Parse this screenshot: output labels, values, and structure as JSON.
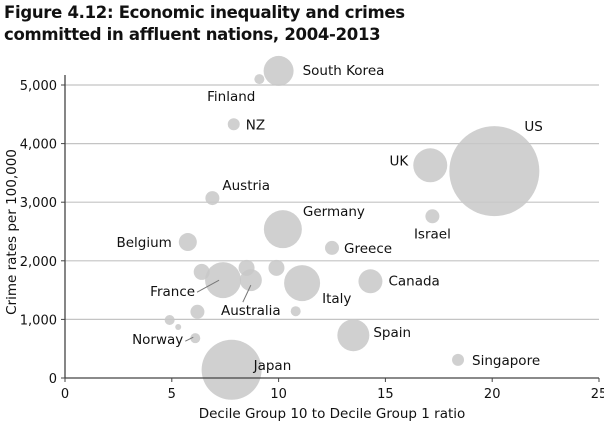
{
  "chart_data": {
    "type": "scatter",
    "subtype": "bubble",
    "title_line1": "Figure 4.12: Economic inequality and crimes",
    "title_line2": "committed in affluent nations, 2004-2013",
    "xlabel": "Decile Group 10 to Decile Group 1 ratio",
    "ylabel": "Crime rates per 100,000",
    "xlim": [
      0,
      25
    ],
    "ylim": [
      0,
      5000
    ],
    "xticks": [
      "0",
      "5",
      "10",
      "15",
      "20",
      "25"
    ],
    "yticks": [
      "0",
      "1,000",
      "2,000",
      "3,000",
      "4,000",
      "5,000"
    ],
    "grid": "horizontal",
    "bubble_color": "#c8c8c8",
    "points": [
      {
        "label": "South Korea",
        "x": 10.0,
        "y": 5240,
        "size": 225
      },
      {
        "label": "Finland",
        "x": 9.1,
        "y": 5100,
        "size": 25
      },
      {
        "label": "NZ",
        "x": 7.9,
        "y": 4330,
        "size": 36
      },
      {
        "label": "US",
        "x": 20.1,
        "y": 3530,
        "size": 2025
      },
      {
        "label": "UK",
        "x": 17.1,
        "y": 3630,
        "size": 289
      },
      {
        "label": "Austria",
        "x": 6.9,
        "y": 3070,
        "size": 49
      },
      {
        "label": "Israel",
        "x": 17.2,
        "y": 2760,
        "size": 49
      },
      {
        "label": "Germany",
        "x": 10.2,
        "y": 2540,
        "size": 361
      },
      {
        "label": "Belgium",
        "x": 5.75,
        "y": 2320,
        "size": 81
      },
      {
        "label": "Greece",
        "x": 12.5,
        "y": 2220,
        "size": 49
      },
      {
        "label": "Canada",
        "x": 14.3,
        "y": 1650,
        "size": 144
      },
      {
        "label": "France",
        "x": 7.4,
        "y": 1670,
        "size": 324
      },
      {
        "label": "Australia",
        "x": 8.7,
        "y": 1670,
        "size": 121
      },
      {
        "label": "Italy",
        "x": 11.1,
        "y": 1620,
        "size": 324
      },
      {
        "label": "",
        "x": 6.4,
        "y": 1810,
        "size": 64
      },
      {
        "label": "",
        "x": 8.5,
        "y": 1880,
        "size": 64
      },
      {
        "label": "",
        "x": 9.9,
        "y": 1880,
        "size": 64
      },
      {
        "label": "",
        "x": 6.2,
        "y": 1130,
        "size": 49
      },
      {
        "label": "",
        "x": 4.9,
        "y": 990,
        "size": 25
      },
      {
        "label": "",
        "x": 5.3,
        "y": 870,
        "size": 9
      },
      {
        "label": "",
        "x": 10.8,
        "y": 1140,
        "size": 25
      },
      {
        "label": "Norway",
        "x": 6.1,
        "y": 680,
        "size": 25
      },
      {
        "label": "Spain",
        "x": 13.5,
        "y": 730,
        "size": 256
      },
      {
        "label": "Japan",
        "x": 7.8,
        "y": 140,
        "size": 900
      },
      {
        "label": "Singapore",
        "x": 18.4,
        "y": 310,
        "size": 36
      }
    ]
  }
}
